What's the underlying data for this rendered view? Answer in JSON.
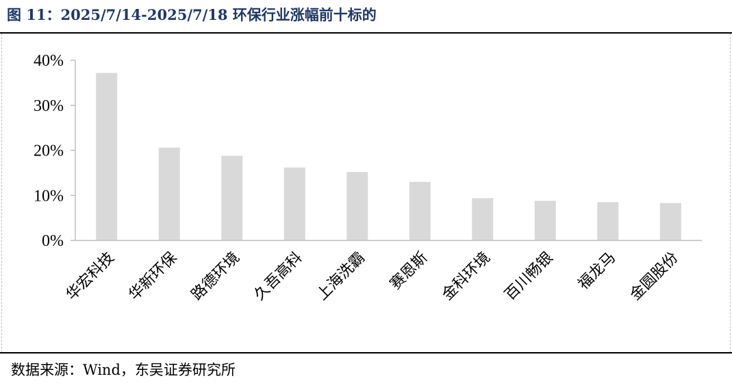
{
  "figure": {
    "title": "图 11：2025/7/14-2025/7/18 环保行业涨幅前十标的",
    "source": "数据来源：Wind，东吴证券研究所"
  },
  "chart_data": {
    "type": "bar",
    "title": "",
    "xlabel": "",
    "ylabel": "",
    "categories": [
      "华宏科技",
      "华新环保",
      "路德环境",
      "久吾高科",
      "上海洗霸",
      "赛恩斯",
      "金科环境",
      "百川畅银",
      "福龙马",
      "金圆股份"
    ],
    "values": [
      37.2,
      20.6,
      18.8,
      16.2,
      15.2,
      13.0,
      9.4,
      8.8,
      8.5,
      8.3
    ],
    "ylim": [
      0,
      40
    ],
    "yticks": [
      "0%",
      "10%",
      "20%",
      "30%",
      "40%"
    ],
    "bar_color": "#d9d9d9",
    "grid": false,
    "legend": "none"
  }
}
